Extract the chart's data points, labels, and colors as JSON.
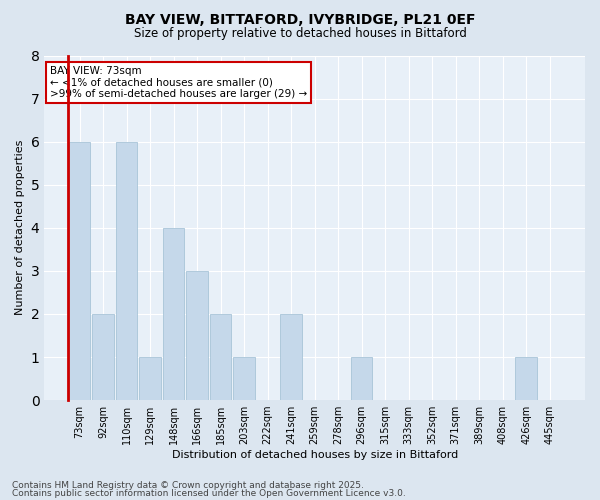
{
  "title1": "BAY VIEW, BITTAFORD, IVYBRIDGE, PL21 0EF",
  "title2": "Size of property relative to detached houses in Bittaford",
  "xlabel": "Distribution of detached houses by size in Bittaford",
  "ylabel": "Number of detached properties",
  "categories": [
    "73sqm",
    "92sqm",
    "110sqm",
    "129sqm",
    "148sqm",
    "166sqm",
    "185sqm",
    "203sqm",
    "222sqm",
    "241sqm",
    "259sqm",
    "278sqm",
    "296sqm",
    "315sqm",
    "333sqm",
    "352sqm",
    "371sqm",
    "389sqm",
    "408sqm",
    "426sqm",
    "445sqm"
  ],
  "values": [
    6,
    2,
    6,
    1,
    4,
    3,
    2,
    1,
    0,
    2,
    0,
    0,
    1,
    0,
    0,
    0,
    0,
    0,
    0,
    1,
    0
  ],
  "bar_color": "#c5d8ea",
  "bar_edge_color": "#a8c4d8",
  "highlight_index": 0,
  "annotation_text": "BAY VIEW: 73sqm\n← <1% of detached houses are smaller (0)\n>99% of semi-detached houses are larger (29) →",
  "annotation_box_facecolor": "white",
  "annotation_box_edgecolor": "#cc0000",
  "ylim": [
    0,
    8
  ],
  "yticks": [
    0,
    1,
    2,
    3,
    4,
    5,
    6,
    7,
    8
  ],
  "footer1": "Contains HM Land Registry data © Crown copyright and database right 2025.",
  "footer2": "Contains public sector information licensed under the Open Government Licence v3.0.",
  "bg_color": "#dce6f0",
  "plot_bg_color": "#e8f0f8",
  "red_line_color": "#cc0000",
  "title1_fontsize": 10,
  "title2_fontsize": 8.5,
  "ylabel_fontsize": 8,
  "xlabel_fontsize": 8,
  "tick_fontsize": 7,
  "footer_fontsize": 6.5,
  "annotation_fontsize": 7.5
}
